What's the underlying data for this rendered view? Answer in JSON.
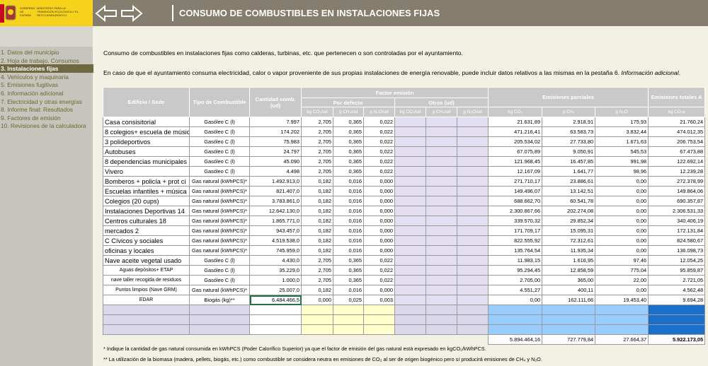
{
  "logo": {
    "line1": "GOBIERNO DE ESPAÑA",
    "line2": "MINISTERIO PARA LA TRANSICIÓN ECOLÓGICA Y EL RETO DEMOGRÁFICO"
  },
  "header": {
    "title": "CONSUMO DE COMBUSTIBLES EN INSTALACIONES FIJAS"
  },
  "sidebar": {
    "items": [
      "1. Datos del municipio",
      "2. Hoja de trabajo. Consumos",
      "3. Instalaciones fijas",
      "4. Vehículos y maquinaria",
      "5. Emisiones fugitivas",
      "6. Información adicional",
      "7. Electricidad y otras energías",
      "8. Informe final: Resultados",
      "9. Factores de emisión",
      "10. Revisiones de la calculadora"
    ],
    "active": 2
  },
  "intro": {
    "line1": "Consumo de combustibles en instalaciones fijas como calderas, turbinas, etc. que pertenecen o son controladas por el ayuntamiento.",
    "line2": "En caso de que el ayuntamiento consuma electricidad, calor o vapor proveniente de sus propias instalaciones de energía renovable, puede incluir datos relativos a las mismas en la pestaña 6. ",
    "line2_italic": "Información adicional",
    "line2_end": "."
  },
  "table": {
    "headers": {
      "building": "Edificio / Sede",
      "fuel": "Tipo de Combustible",
      "quantity": "Cantidad comb. (ud)",
      "factor": "Factor emisión",
      "default": "Por defecto",
      "others": "Otros (ud)",
      "partial": "Emisiones parciales",
      "total": "Emisiones totales A",
      "units": [
        "kg CO₂/ud",
        "g CH₄/ud",
        "g N₂O/ud",
        "kg CO₂/ud",
        "g CH₄/ud",
        "g N₂O/ud",
        "kg CO₂",
        "g CH₄",
        "g N₂O",
        "kg CO₂e"
      ]
    },
    "rows": [
      [
        "Casa consisitorial",
        "Gasóleo C (l)",
        "7.997",
        "2,705",
        "0,365",
        "0,022",
        "21.631,89",
        "2.918,91",
        "175,93",
        "21.760,24"
      ],
      [
        "8 colegios+ escuela de músic",
        "Gasóleo C (l)",
        "174.202",
        "2,705",
        "0,365",
        "0,022",
        "471.216,41",
        "63.583,73",
        "3.832,44",
        "474.012,35"
      ],
      [
        "3 polideportivos",
        "Gasóleo C (l)",
        "75.983",
        "2,705",
        "0,365",
        "0,022",
        "205.534,02",
        "27.733,80",
        "1.671,63",
        "206.753,54"
      ],
      [
        "Autobuses",
        "Gasóleo C (l)",
        "24.797",
        "2,705",
        "0,365",
        "0,022",
        "67.075,89",
        "9.050,91",
        "545,53",
        "67.473,88"
      ],
      [
        "8 dependencias municipales",
        "Gasóleo C (l)",
        "45.090",
        "2,705",
        "0,365",
        "0,022",
        "121.968,45",
        "16.457,85",
        "991,98",
        "122.692,14"
      ],
      [
        "Vivero",
        "Gasóleo C (l)",
        "4.498",
        "2,705",
        "0,365",
        "0,022",
        "12.167,09",
        "1.641,77",
        "98,96",
        "12.239,28"
      ],
      [
        "Bomberos + policía + prot ci",
        "Gas natural (kWhPCS)*",
        "1.492.913,0",
        "0,182",
        "0,016",
        "0,000",
        "271.710,17",
        "23.886,61",
        "0,00",
        "272.378,99"
      ],
      [
        "Escuelas infantiles + música",
        "Gas natural (kWhPCS)*",
        "821.407,0",
        "0,182",
        "0,016",
        "0,000",
        "149.496,07",
        "13.142,51",
        "0,00",
        "149.864,06"
      ],
      [
        "Colegios (20 cups)",
        "Gas natural (kWhPCS)*",
        "3.783.861,0",
        "0,182",
        "0,016",
        "0,000",
        "688.662,70",
        "60.541,78",
        "0,00",
        "690.357,87"
      ],
      [
        "Instalaciones Deportivas 14",
        "Gas natural (kWhPCS)*",
        "12.642.130,0",
        "0,182",
        "0,016",
        "0,000",
        "2.300.867,66",
        "202.274,08",
        "0,00",
        "2.306.531,33"
      ],
      [
        "Centros culturales 18",
        "Gas natural (kWhPCS)*",
        "1.865.771,0",
        "0,182",
        "0,016",
        "0,000",
        "339.570,32",
        "29.852,34",
        "0,00",
        "340.406,19"
      ],
      [
        "mercados 2",
        "Gas natural (kWhPCS)*",
        "943.457,0",
        "0,182",
        "0,016",
        "0,000",
        "171.709,17",
        "15.095,31",
        "0,00",
        "172.131,84"
      ],
      [
        "C Cívicos y sociales",
        "Gas natural (kWhPCS)*",
        "4.519.538,0",
        "0,182",
        "0,016",
        "0,000",
        "822.555,92",
        "72.312,61",
        "0,00",
        "824.580,67"
      ],
      [
        "oficinas y locales",
        "Gas natural (kWhPCS)*",
        "745.959,0",
        "0,182",
        "0,016",
        "0,000",
        "135.764,54",
        "11.935,34",
        "0,00",
        "136.098,73"
      ],
      [
        "Nave aceite vegetal usado",
        "Gasóleo C (l)",
        "4.430,0",
        "2,705",
        "0,365",
        "0,022",
        "11.983,15",
        "1.616,95",
        "97,46",
        "12.054,25"
      ],
      [
        "Aguas depósitos+ ETAP",
        "Gasóleo C (l)",
        "35.229,0",
        "2,705",
        "0,365",
        "0,022",
        "95.294,45",
        "12.858,59",
        "775,04",
        "95.859,87"
      ],
      [
        "nave taller recogida de residuos",
        "Gasóleo C (l)",
        "1.000,0",
        "2,705",
        "0,365",
        "0,022",
        "2.705,00",
        "365,00",
        "22,00",
        "2.721,05"
      ],
      [
        "Puntos limpios (Nave GRM)",
        "Gas natural (kWhPCS)*",
        "25.007,0",
        "0,182",
        "0,016",
        "0,000",
        "4.551,27",
        "400,11",
        "0,00",
        "4.562,48"
      ],
      [
        "EDAR",
        "Biogás (kg)**",
        "6.484.466,5",
        "0,000",
        "0,025",
        "0,003",
        "0,00",
        "162.111,66",
        "19.453,40",
        "9.694,28"
      ]
    ],
    "totals": [
      "5.894.464,16",
      "727.779,84",
      "27.664,37",
      "5.922.173,05"
    ]
  },
  "footnotes": [
    "* Indique la cantidad de gas natural consumida en kWhPCS (Poder Calorífico Superior) ya que el factor de emisión del gas natural está expresado en kgCO₂/kWhPCS.",
    "** La utilización de la biomasa (madera, pellets, biogás, etc.) como combustible se considera neutra en emisiones de CO₂ al ser de origen biogénico pero sí producirá emisiones de CH₄ y N₂O."
  ]
}
